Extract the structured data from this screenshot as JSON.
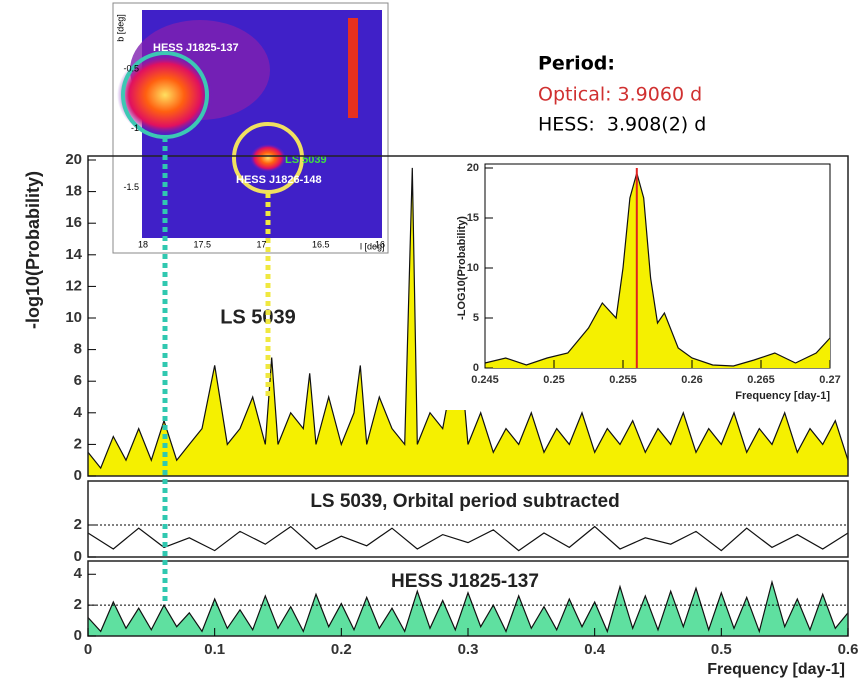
{
  "period": {
    "title": "Period:",
    "optical": "Optical: 3.9060 d",
    "hess": "HESS:  3.908(2) d"
  },
  "sky_map": {
    "source_1": "HESS J1825-137",
    "source_2": "LS 5039",
    "source_3": "HESS J1826-148",
    "x_label": "l [deg]",
    "y_label": "b [deg]",
    "xlim": [
      18,
      16
    ],
    "ylim": [
      -1.95,
      0
    ],
    "xticks": [
      18,
      17.5,
      17,
      16.5,
      16
    ],
    "yticks": [
      -0.5,
      -1,
      -1.5
    ]
  },
  "chart_data": [
    {
      "type": "area",
      "annotation": "LS 5039",
      "y_label": "-log10(Probability)",
      "color": "#f5f000",
      "xlim": [
        0,
        0.6
      ],
      "ylim": [
        0,
        20
      ],
      "yticks": [
        0,
        2,
        4,
        6,
        8,
        10,
        12,
        14,
        16,
        18,
        20
      ],
      "x": [
        0,
        0.01,
        0.02,
        0.03,
        0.04,
        0.05,
        0.06,
        0.07,
        0.08,
        0.09,
        0.1,
        0.11,
        0.12,
        0.13,
        0.14,
        0.145,
        0.15,
        0.16,
        0.17,
        0.175,
        0.18,
        0.19,
        0.2,
        0.21,
        0.215,
        0.22,
        0.23,
        0.24,
        0.25,
        0.256,
        0.26,
        0.27,
        0.28,
        0.293,
        0.3,
        0.31,
        0.32,
        0.33,
        0.34,
        0.35,
        0.36,
        0.37,
        0.38,
        0.39,
        0.4,
        0.41,
        0.42,
        0.43,
        0.44,
        0.45,
        0.46,
        0.47,
        0.48,
        0.49,
        0.5,
        0.51,
        0.52,
        0.53,
        0.54,
        0.55,
        0.56,
        0.57,
        0.58,
        0.59,
        0.6
      ],
      "values": [
        1.5,
        0.5,
        2.5,
        1,
        3,
        1,
        3.5,
        1,
        2,
        3,
        7,
        2,
        3,
        5,
        2,
        7.5,
        2,
        4,
        3,
        6.5,
        2,
        5,
        2,
        4,
        7,
        2,
        5,
        3,
        2,
        19.5,
        2,
        4,
        3,
        8.5,
        2,
        4,
        1.5,
        3,
        2,
        4,
        1.5,
        3,
        2,
        4,
        1.5,
        3,
        2,
        3.5,
        1.5,
        3,
        2,
        4,
        1.5,
        3,
        2,
        4,
        1.5,
        3,
        2,
        4,
        1.5,
        3,
        2,
        3.5,
        1
      ]
    },
    {
      "type": "area",
      "title": "LS 5039, Orbital period subtracted",
      "color": "#ffffff",
      "reference_line": 2,
      "xlim": [
        0,
        0.6
      ],
      "ylim": [
        0,
        4.5
      ],
      "yticks": [
        0,
        2
      ],
      "x": [
        0,
        0.02,
        0.04,
        0.06,
        0.08,
        0.1,
        0.12,
        0.14,
        0.16,
        0.18,
        0.2,
        0.22,
        0.24,
        0.26,
        0.28,
        0.3,
        0.32,
        0.34,
        0.36,
        0.38,
        0.4,
        0.42,
        0.44,
        0.46,
        0.48,
        0.5,
        0.52,
        0.54,
        0.56,
        0.58,
        0.6
      ],
      "values": [
        1.5,
        0.5,
        1.8,
        0.6,
        1.2,
        0.4,
        1.6,
        0.8,
        1.9,
        0.5,
        1.3,
        0.7,
        1.8,
        0.5,
        1.4,
        0.9,
        1.7,
        0.4,
        1.5,
        0.6,
        1.9,
        0.5,
        1.2,
        0.8,
        1.6,
        0.4,
        1.8,
        0.6,
        1.4,
        0.5,
        1.5
      ]
    },
    {
      "type": "area",
      "title": "HESS J1825-137",
      "color": "#5fe0a0",
      "reference_line": 2,
      "x_label": "Frequency [day-1]",
      "xlim": [
        0,
        0.6
      ],
      "ylim": [
        0,
        4.6
      ],
      "yticks": [
        0,
        2,
        4
      ],
      "xticks": [
        0,
        0.1,
        0.2,
        0.3,
        0.4,
        0.5,
        0.6
      ],
      "x": [
        0,
        0.01,
        0.02,
        0.03,
        0.04,
        0.05,
        0.06,
        0.07,
        0.08,
        0.09,
        0.1,
        0.11,
        0.12,
        0.13,
        0.14,
        0.15,
        0.16,
        0.17,
        0.18,
        0.19,
        0.2,
        0.21,
        0.22,
        0.23,
        0.24,
        0.25,
        0.26,
        0.27,
        0.28,
        0.29,
        0.3,
        0.31,
        0.32,
        0.33,
        0.34,
        0.35,
        0.36,
        0.37,
        0.38,
        0.39,
        0.4,
        0.41,
        0.42,
        0.43,
        0.44,
        0.45,
        0.46,
        0.47,
        0.48,
        0.49,
        0.5,
        0.51,
        0.52,
        0.53,
        0.54,
        0.55,
        0.56,
        0.57,
        0.58,
        0.59,
        0.6
      ],
      "values": [
        1.2,
        0.3,
        2.2,
        0.5,
        1.8,
        0.4,
        2,
        0.6,
        1.5,
        0.3,
        2.4,
        0.5,
        1.7,
        0.4,
        2.6,
        0.5,
        1.9,
        0.3,
        2.7,
        0.6,
        2.1,
        0.4,
        2.5,
        0.5,
        1.8,
        0.3,
        2.9,
        0.5,
        2.3,
        0.4,
        2.8,
        0.6,
        2,
        0.3,
        2.6,
        0.5,
        1.9,
        0.4,
        2.4,
        0.6,
        2.2,
        0.3,
        3.2,
        0.5,
        2.6,
        0.4,
        2.9,
        0.6,
        3.1,
        0.4,
        2.8,
        0.5,
        2.5,
        0.3,
        3.5,
        0.6,
        2.4,
        0.4,
        2.7,
        0.5,
        1.5
      ]
    },
    {
      "type": "area",
      "y_label": "-LOG10(Probability)",
      "x_label": "Frequency [day-1]",
      "color": "#f5f000",
      "marker_x": 0.256,
      "marker_color": "#e02020",
      "xlim": [
        0.245,
        0.27
      ],
      "ylim": [
        0,
        20
      ],
      "yticks": [
        0,
        5,
        10,
        15,
        20
      ],
      "xticks": [
        0.245,
        0.25,
        0.255,
        0.26,
        0.265,
        0.27
      ],
      "x": [
        0.245,
        0.2465,
        0.248,
        0.2495,
        0.251,
        0.2525,
        0.2535,
        0.2545,
        0.255,
        0.2555,
        0.256,
        0.2565,
        0.257,
        0.2575,
        0.258,
        0.259,
        0.26,
        0.2615,
        0.263,
        0.2645,
        0.266,
        0.2675,
        0.269,
        0.27
      ],
      "values": [
        0.5,
        1,
        0.3,
        1,
        1.5,
        4,
        6.5,
        5,
        10,
        17,
        19.5,
        17,
        9,
        4.5,
        5.5,
        2,
        1,
        0.3,
        0.2,
        0.8,
        1.5,
        0.5,
        1.5,
        3
      ]
    }
  ]
}
